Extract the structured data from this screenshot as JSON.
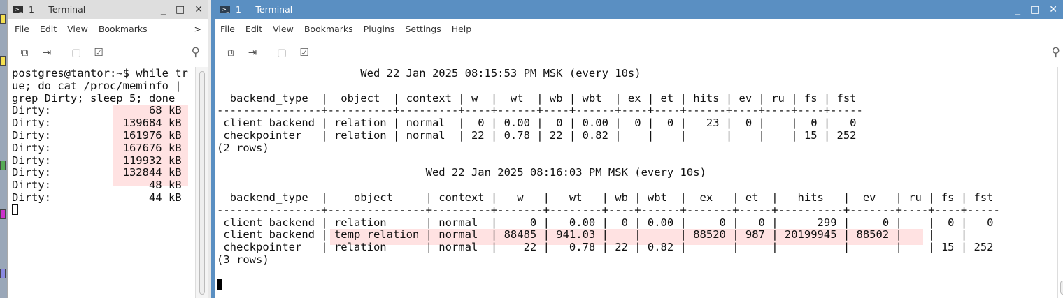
{
  "left_window": {
    "title": "1 — Terminal",
    "menu": [
      "File",
      "Edit",
      "View",
      "Bookmarks"
    ],
    "menu_more": ">",
    "lines": [
      "postgres@tantor:~$ while tr",
      "ue; do cat /proc/meminfo |",
      "grep Dirty; sleep 5; done",
      "Dirty:               68 kB",
      "Dirty:           139684 kB",
      "Dirty:           161976 kB",
      "Dirty:           167676 kB",
      "Dirty:           119932 kB",
      "Dirty:           132844 kB",
      "Dirty:               48 kB",
      "Dirty:               44 kB"
    ]
  },
  "right_window": {
    "title": "1 — Terminal",
    "menu": [
      "File",
      "Edit",
      "View",
      "Bookmarks",
      "Plugins",
      "Settings",
      "Help"
    ],
    "lines": [
      "                      Wed 22 Jan 2025 08:15:53 PM MSK (every 10s)",
      "",
      "  backend_type  |  object  | context | w  |  wt  | wb | wbt  | ex | et | hits | ev | ru | fs | fst ",
      "----------------+----------+---------+----+------+----+------+----+----+------+----+----+----+-----",
      " client backend | relation | normal  |  0 | 0.00 |  0 | 0.00 |  0 |  0 |   23 |  0 |    |  0 |   0",
      " checkpointer   | relation | normal  | 22 | 0.78 | 22 | 0.82 |    |    |      |    |    | 15 | 252",
      "(2 rows)",
      "",
      "                                Wed 22 Jan 2025 08:16:03 PM MSK (every 10s)",
      "",
      "  backend_type  |    object     | context |   w   |   wt   | wb | wbt  |  ex   | et  |   hits   |  ev   | ru | fs | fst ",
      "----------------+---------------+---------+-------+--------+----+------+-------+-----+----------+-------+----+----+-----",
      " client backend | relation      | normal  |     0 |   0.00 |  0 | 0.00 |     0 |   0 |      299 |     0 |    |  0 |   0",
      " client backend | temp relation | normal  | 88485 | 941.03 |    |      | 88520 | 987 | 20199945 | 88502 |    |    |    ",
      " checkpointer   | relation      | normal  |    22 |   0.78 | 22 | 0.82 |       |     |          |       |    | 15 | 252",
      "(3 rows)",
      ""
    ]
  },
  "icons": {
    "toolbar": [
      "new-tab-icon",
      "split-view-icon",
      "detach-icon",
      "copy-input-icon"
    ],
    "search": "search-icon"
  },
  "colors": {
    "title_active": "#5a8fc2",
    "highlight": "#ffd6d6"
  }
}
